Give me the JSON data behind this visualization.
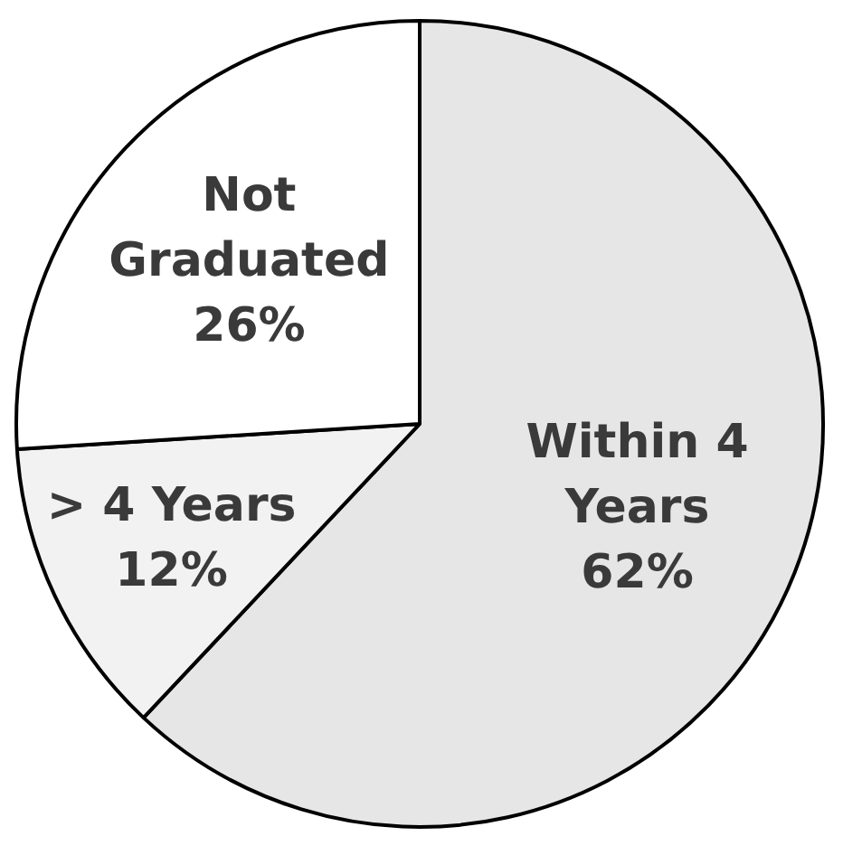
{
  "chart_data": {
    "type": "pie",
    "categories": [
      "Within 4 Years",
      "> 4 Years",
      "Not Graduated"
    ],
    "values": [
      62,
      12,
      26
    ],
    "colors": [
      "#e6e6e6",
      "#f2f2f2",
      "#ffffff"
    ],
    "value_labels": [
      "62%",
      "12%",
      "26%"
    ]
  }
}
